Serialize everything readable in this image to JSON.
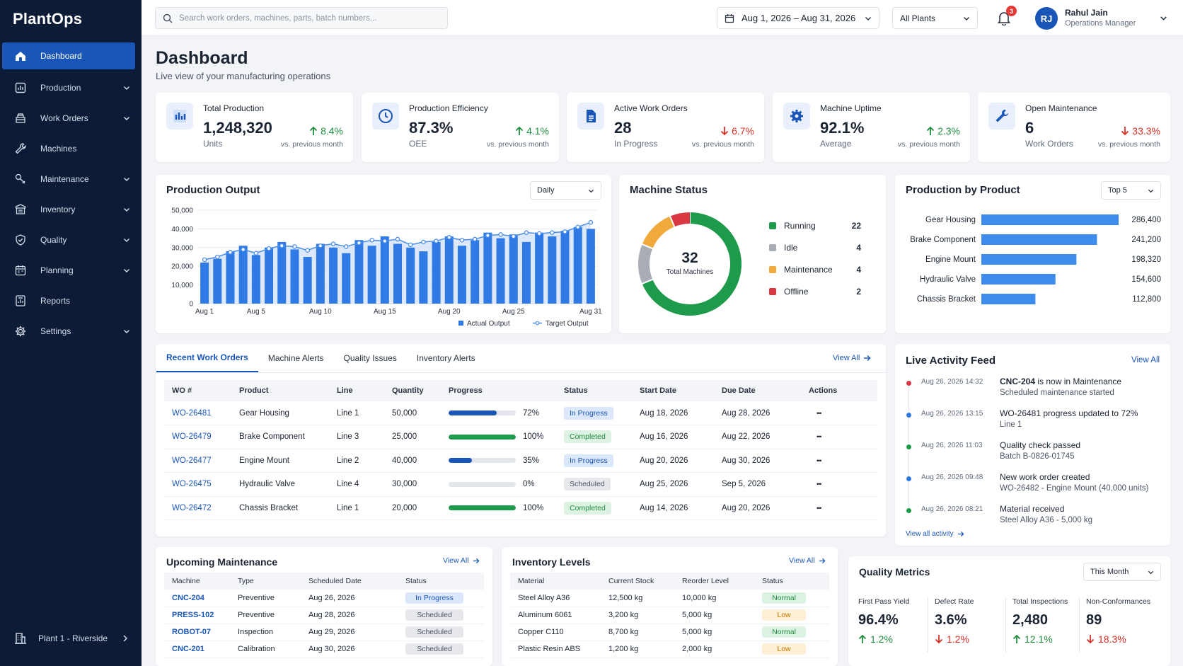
{
  "app": {
    "brand": "PlantOps"
  },
  "sidebar": {
    "items": [
      {
        "label": "Dashboard",
        "icon": "home-icon",
        "active": true,
        "expandable": false
      },
      {
        "label": "Production",
        "icon": "production-icon",
        "expandable": true
      },
      {
        "label": "Work Orders",
        "icon": "work-orders-icon",
        "expandable": true
      },
      {
        "label": "Machines",
        "icon": "wrench-icon",
        "expandable": false
      },
      {
        "label": "Maintenance",
        "icon": "maintenance-icon",
        "expandable": true
      },
      {
        "label": "Inventory",
        "icon": "inventory-icon",
        "expandable": true
      },
      {
        "label": "Quality",
        "icon": "shield-check-icon",
        "expandable": true
      },
      {
        "label": "Planning",
        "icon": "calendar-icon",
        "expandable": true
      },
      {
        "label": "Reports",
        "icon": "reports-icon",
        "expandable": false
      },
      {
        "label": "Settings",
        "icon": "gear-icon",
        "expandable": true
      }
    ],
    "plant": "Plant 1 - Riverside"
  },
  "topbar": {
    "search_placeholder": "Search work orders, machines, parts, batch numbers...",
    "date_range": "Aug 1, 2026 – Aug 31, 2026",
    "plant_filter": "All Plants",
    "notification_count": "3",
    "user": {
      "initials": "RJ",
      "name": "Rahul Jain",
      "role": "Operations Manager"
    }
  },
  "header": {
    "title": "Dashboard",
    "subtitle": "Live view of your manufacturing operations"
  },
  "kpis": [
    {
      "label": "Total Production",
      "value": "1,248,320",
      "unit": "Units",
      "delta": "8.4%",
      "direction": "up",
      "compare": "vs. previous month",
      "icon": "bar-chart-icon"
    },
    {
      "label": "Production Efficiency",
      "value": "87.3%",
      "unit": "OEE",
      "delta": "4.1%",
      "direction": "up",
      "compare": "vs. previous month",
      "icon": "clock-icon"
    },
    {
      "label": "Active Work Orders",
      "value": "28",
      "unit": "In Progress",
      "delta": "6.7%",
      "direction": "down",
      "compare": "vs. previous month",
      "icon": "document-icon"
    },
    {
      "label": "Machine Uptime",
      "value": "92.1%",
      "unit": "Average",
      "delta": "2.3%",
      "direction": "up",
      "compare": "vs. previous month",
      "icon": "gear-icon"
    },
    {
      "label": "Open Maintenance",
      "value": "6",
      "unit": "Work Orders",
      "delta": "33.3%",
      "direction": "down",
      "compare": "vs. previous month",
      "icon": "wrench-icon"
    }
  ],
  "production_output": {
    "title": "Production Output",
    "interval": "Daily",
    "legend": {
      "actual": "Actual Output",
      "target": "Target Output"
    },
    "colors": {
      "actual": "#2f7ae5",
      "target": "#4a8ee8"
    }
  },
  "chart_data": [
    {
      "type": "bar",
      "title": "Production Output",
      "x": [
        "Aug 1",
        "Aug 2",
        "Aug 3",
        "Aug 4",
        "Aug 5",
        "Aug 6",
        "Aug 7",
        "Aug 8",
        "Aug 9",
        "Aug 10",
        "Aug 11",
        "Aug 12",
        "Aug 13",
        "Aug 14",
        "Aug 15",
        "Aug 16",
        "Aug 17",
        "Aug 18",
        "Aug 19",
        "Aug 20",
        "Aug 21",
        "Aug 22",
        "Aug 23",
        "Aug 24",
        "Aug 25",
        "Aug 26",
        "Aug 27",
        "Aug 28",
        "Aug 29",
        "Aug 30",
        "Aug 31"
      ],
      "x_tick_labels": [
        "Aug 1",
        "Aug 5",
        "Aug 10",
        "Aug 15",
        "Aug 20",
        "Aug 25",
        "Aug 31"
      ],
      "x_tick_indices": [
        0,
        4,
        9,
        14,
        19,
        24,
        30
      ],
      "series": [
        {
          "name": "Actual Output",
          "type": "bar",
          "values": [
            22000,
            24000,
            28000,
            31000,
            26000,
            30000,
            33000,
            29000,
            25000,
            32000,
            30000,
            27000,
            34000,
            31000,
            36000,
            32000,
            30000,
            28000,
            33000,
            36000,
            31000,
            34000,
            38000,
            35000,
            37000,
            33000,
            38000,
            36000,
            39000,
            41000,
            40000
          ]
        },
        {
          "name": "Target Output",
          "type": "line",
          "values": [
            23500,
            25000,
            27500,
            29000,
            27000,
            29500,
            31000,
            30500,
            28500,
            31000,
            32000,
            30500,
            32500,
            34000,
            33500,
            34500,
            31500,
            33000,
            33500,
            35500,
            34000,
            34500,
            36500,
            37000,
            36000,
            38000,
            37500,
            38000,
            38500,
            41000,
            43500
          ]
        }
      ],
      "ylim": [
        0,
        50000
      ],
      "yticks": [
        "50,000",
        "40,000",
        "30,000",
        "20,000",
        "10,000",
        "0"
      ],
      "grid": true,
      "legend": "bottom"
    },
    {
      "type": "pie",
      "title": "Machine Status",
      "center_value": "32",
      "center_label": "Total Machines",
      "slices": [
        {
          "label": "Running",
          "value": 22,
          "color": "#1e9b4a"
        },
        {
          "label": "Idle",
          "value": 4,
          "color": "#a9adb5"
        },
        {
          "label": "Maintenance",
          "value": 4,
          "color": "#f0a93b"
        },
        {
          "label": "Offline",
          "value": 2,
          "color": "#d93842"
        }
      ]
    },
    {
      "type": "bar",
      "orientation": "horizontal",
      "title": "Production by Product",
      "filter": "Top 5",
      "categories": [
        "Gear Housing",
        "Brake Component",
        "Engine Mount",
        "Hydraulic Valve",
        "Chassis Bracket"
      ],
      "values": [
        286400,
        241200,
        198320,
        154600,
        112800
      ],
      "value_labels": [
        "286,400",
        "241,200",
        "198,320",
        "154,600",
        "112,800"
      ],
      "color": "#3d8bea"
    }
  ],
  "work_orders": {
    "tabs": [
      "Recent Work Orders",
      "Machine Alerts",
      "Quality Issues",
      "Inventory Alerts"
    ],
    "view_all": "View All",
    "columns": [
      "WO #",
      "Product",
      "Line",
      "Quantity",
      "Progress",
      "Status",
      "Start Date",
      "Due Date",
      "Actions"
    ],
    "rows": [
      {
        "wo": "WO-26481",
        "product": "Gear Housing",
        "line": "Line 1",
        "qty": "50,000",
        "progress": 72,
        "progress_label": "72%",
        "status": "In Progress",
        "kind": "prog",
        "start": "Aug 18, 2026",
        "due": "Aug 28, 2026"
      },
      {
        "wo": "WO-26479",
        "product": "Brake Component",
        "line": "Line 3",
        "qty": "25,000",
        "progress": 100,
        "progress_label": "100%",
        "status": "Completed",
        "kind": "done",
        "start": "Aug 16, 2026",
        "due": "Aug 22, 2026"
      },
      {
        "wo": "WO-26477",
        "product": "Engine Mount",
        "line": "Line 2",
        "qty": "40,000",
        "progress": 35,
        "progress_label": "35%",
        "status": "In Progress",
        "kind": "prog",
        "start": "Aug 20, 2026",
        "due": "Aug 30, 2026"
      },
      {
        "wo": "WO-26475",
        "product": "Hydraulic Valve",
        "line": "Line 4",
        "qty": "30,000",
        "progress": 0,
        "progress_label": "0%",
        "status": "Scheduled",
        "kind": "sch",
        "start": "Aug 25, 2026",
        "due": "Sep 5, 2026"
      },
      {
        "wo": "WO-26472",
        "product": "Chassis Bracket",
        "line": "Line 1",
        "qty": "20,000",
        "progress": 100,
        "progress_label": "100%",
        "status": "Completed",
        "kind": "done",
        "start": "Aug 14, 2026",
        "due": "Aug 20, 2026"
      }
    ],
    "actions_glyph": "•••"
  },
  "activity": {
    "title": "Live Activity Feed",
    "view_all": "View All",
    "view_all_activity": "View all activity",
    "items": [
      {
        "time": "Aug 26, 2026 14:32",
        "title_bold": "CNC-204",
        "title_rest": " is now in Maintenance",
        "sub": "Scheduled maintenance started",
        "color": "#d93842"
      },
      {
        "time": "Aug 26, 2026 13:15",
        "title_bold": "",
        "title_rest": "WO-26481 progress updated to 72%",
        "sub": "Line 1",
        "color": "#2f7ae5"
      },
      {
        "time": "Aug 26, 2026 11:03",
        "title_bold": "",
        "title_rest": "Quality check passed",
        "sub": "Batch B-0826-01745",
        "color": "#1e9b4a"
      },
      {
        "time": "Aug 26, 2026 09:48",
        "title_bold": "",
        "title_rest": "New work order created",
        "sub": "WO-26482 - Engine Mount (40,000 units)",
        "color": "#2f7ae5"
      },
      {
        "time": "Aug 26, 2026 08:21",
        "title_bold": "",
        "title_rest": "Material received",
        "sub": "Steel Alloy A36 - 5,000 kg",
        "color": "#1e9b4a"
      }
    ]
  },
  "maintenance": {
    "title": "Upcoming Maintenance",
    "view_all": "View All",
    "columns": [
      "Machine",
      "Type",
      "Scheduled Date",
      "Status"
    ],
    "rows": [
      {
        "machine": "CNC-204",
        "type": "Preventive",
        "date": "Aug 26, 2026",
        "status": "In Progress",
        "kind": "prog"
      },
      {
        "machine": "PRESS-102",
        "type": "Preventive",
        "date": "Aug 28, 2026",
        "status": "Scheduled",
        "kind": "sch"
      },
      {
        "machine": "ROBOT-07",
        "type": "Inspection",
        "date": "Aug 29, 2026",
        "status": "Scheduled",
        "kind": "sch"
      },
      {
        "machine": "CNC-201",
        "type": "Calibration",
        "date": "Aug 30, 2026",
        "status": "Scheduled",
        "kind": "sch"
      }
    ]
  },
  "inventory": {
    "title": "Inventory Levels",
    "view_all": "View All",
    "columns": [
      "Material",
      "Current Stock",
      "Reorder Level",
      "Status"
    ],
    "rows": [
      {
        "material": "Steel Alloy A36",
        "stock": "12,500 kg",
        "reorder": "10,000 kg",
        "status": "Normal",
        "kind": "norm"
      },
      {
        "material": "Aluminum 6061",
        "stock": "3,200 kg",
        "reorder": "5,000 kg",
        "status": "Low",
        "kind": "low"
      },
      {
        "material": "Copper C110",
        "stock": "8,700 kg",
        "reorder": "5,000 kg",
        "status": "Normal",
        "kind": "norm"
      },
      {
        "material": "Plastic Resin ABS",
        "stock": "1,200 kg",
        "reorder": "2,000 kg",
        "status": "Low",
        "kind": "low"
      }
    ]
  },
  "quality": {
    "title": "Quality Metrics",
    "period": "This Month",
    "metrics": [
      {
        "label": "First Pass Yield",
        "value": "96.4%",
        "delta": "1.2%",
        "direction": "up"
      },
      {
        "label": "Defect Rate",
        "value": "3.6%",
        "delta": "1.2%",
        "direction": "down"
      },
      {
        "label": "Total Inspections",
        "value": "2,480",
        "delta": "12.1%",
        "direction": "up"
      },
      {
        "label": "Non-Conformances",
        "value": "89",
        "delta": "18.3%",
        "direction": "down"
      }
    ]
  }
}
